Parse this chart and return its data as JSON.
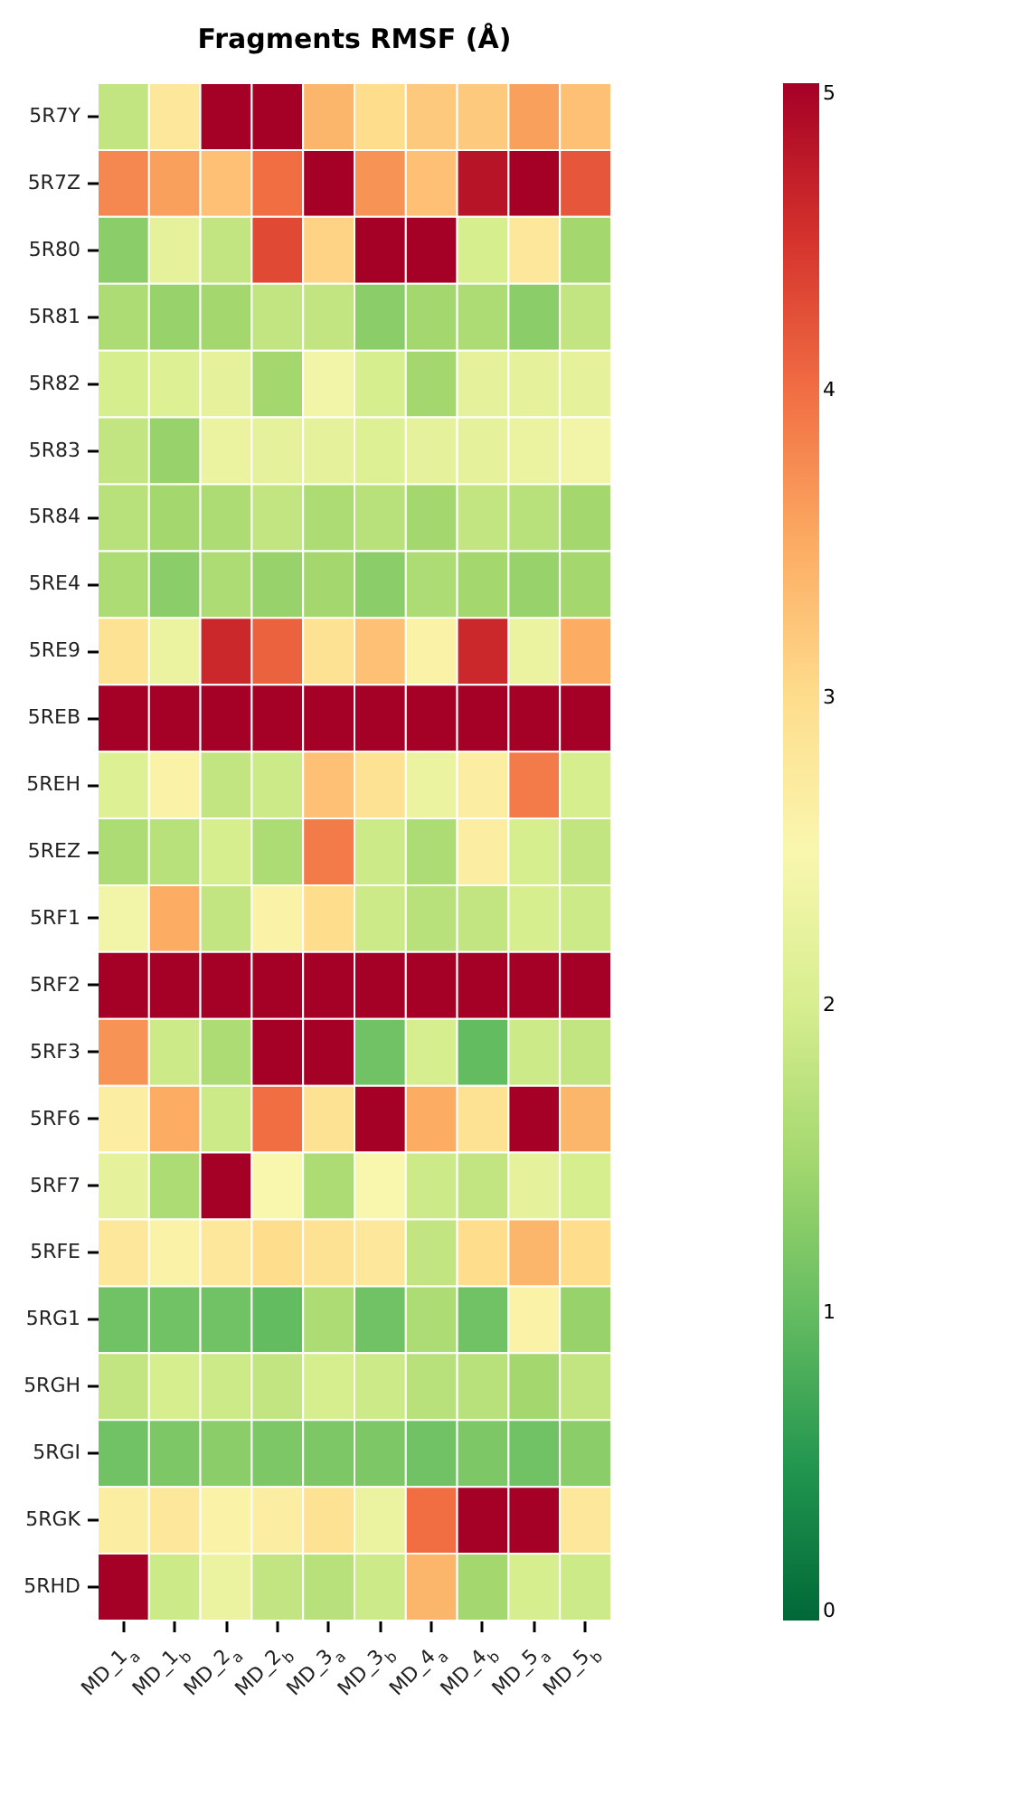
{
  "chart_data": {
    "type": "heatmap",
    "title": "Fragments RMSF (Å)",
    "categories": [
      "MD_1$_{a}$",
      "MD_1$_{b}$",
      "MD_2$_{a}$",
      "MD_2$_{b}$",
      "MD_3$_{a}$",
      "MD_3$_{b}$",
      "MD_4$_{a}$",
      "MD_4$_{b}$",
      "MD_5$_{a}$",
      "MD_5$_{b}$"
    ],
    "y_categories": [
      "5R7Y",
      "5R7Z",
      "5R80",
      "5R81",
      "5R82",
      "5R83",
      "5R84",
      "5RE4",
      "5RE9",
      "5REB",
      "5REH",
      "5REZ",
      "5RF1",
      "5RF2",
      "5RF3",
      "5RF6",
      "5RF7",
      "5RFE",
      "5RG1",
      "5RGH",
      "5RGI",
      "5RGK",
      "5RHD"
    ],
    "cells": [
      [
        1.8,
        2.8,
        5,
        5,
        3.4,
        3.0,
        3.2,
        3.2,
        3.6,
        3.3
      ],
      [
        3.8,
        3.6,
        3.3,
        4.0,
        5,
        3.7,
        3.3,
        4.8,
        5,
        4.2
      ],
      [
        1.3,
        2.2,
        1.8,
        4.3,
        3.1,
        5,
        5,
        2.0,
        2.8,
        1.5
      ],
      [
        1.6,
        1.4,
        1.5,
        1.8,
        1.8,
        1.3,
        1.5,
        1.6,
        1.3,
        1.8
      ],
      [
        2.0,
        2.1,
        2.2,
        1.5,
        2.4,
        2.0,
        1.5,
        2.2,
        2.2,
        2.2
      ],
      [
        1.8,
        1.4,
        2.3,
        2.2,
        2.2,
        2.1,
        2.2,
        2.2,
        2.3,
        2.4
      ],
      [
        1.7,
        1.5,
        1.6,
        1.8,
        1.6,
        1.7,
        1.5,
        1.8,
        1.7,
        1.5
      ],
      [
        1.6,
        1.3,
        1.6,
        1.4,
        1.5,
        1.3,
        1.6,
        1.5,
        1.4,
        1.5
      ],
      [
        2.9,
        2.3,
        4.6,
        4.1,
        2.9,
        3.3,
        2.6,
        4.6,
        2.3,
        3.5
      ],
      [
        5,
        5,
        5,
        5,
        5,
        5,
        5,
        5,
        5,
        5
      ],
      [
        2.1,
        2.6,
        1.8,
        1.9,
        3.3,
        2.9,
        2.3,
        2.7,
        3.9,
        2.0
      ],
      [
        1.6,
        1.7,
        2.0,
        1.6,
        3.9,
        1.9,
        1.6,
        2.7,
        2.0,
        1.8
      ],
      [
        2.4,
        3.5,
        1.8,
        2.6,
        3.0,
        1.9,
        1.7,
        1.8,
        2.0,
        1.9
      ],
      [
        5,
        5,
        5,
        5,
        5,
        5,
        5,
        5,
        5,
        5
      ],
      [
        3.7,
        1.9,
        1.6,
        5,
        5,
        1.1,
        2.0,
        1.0,
        1.9,
        1.8
      ],
      [
        2.7,
        3.5,
        1.9,
        4.0,
        2.9,
        5,
        3.5,
        2.9,
        5,
        3.4
      ],
      [
        2.2,
        1.6,
        5,
        2.5,
        1.6,
        2.5,
        1.9,
        1.8,
        2.2,
        2.0
      ],
      [
        2.8,
        2.6,
        2.8,
        3.0,
        2.9,
        2.8,
        1.8,
        3.0,
        3.4,
        3.0
      ],
      [
        1.1,
        1.1,
        1.1,
        1.0,
        1.6,
        1.1,
        1.6,
        1.1,
        2.6,
        1.4
      ],
      [
        1.8,
        2.0,
        1.9,
        1.8,
        2.0,
        1.9,
        1.7,
        1.7,
        1.5,
        1.8
      ],
      [
        1.1,
        1.2,
        1.3,
        1.2,
        1.2,
        1.2,
        1.1,
        1.2,
        1.1,
        1.3
      ],
      [
        2.7,
        2.8,
        2.6,
        2.7,
        2.9,
        2.3,
        4.0,
        5,
        5,
        2.8
      ],
      [
        5,
        1.9,
        2.3,
        1.8,
        1.7,
        1.9,
        3.4,
        1.5,
        2.0,
        1.9
      ]
    ],
    "clim": [
      0,
      5
    ],
    "cticks": [
      0,
      1,
      2,
      3,
      4,
      5
    ]
  }
}
